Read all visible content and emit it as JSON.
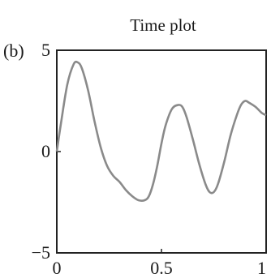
{
  "chart_data": {
    "type": "line",
    "panel_label": "(b)",
    "title": "Time plot",
    "xlabel": "",
    "ylabel": "",
    "xlim": [
      0,
      1
    ],
    "ylim": [
      -5,
      5
    ],
    "x_ticks": [
      0,
      0.5,
      1
    ],
    "x_tick_labels": [
      "0",
      "0.5",
      "1"
    ],
    "y_ticks": [
      -5,
      0,
      5
    ],
    "y_tick_labels": [
      "−5",
      "0",
      "5"
    ],
    "grid": false,
    "legend": "none",
    "line_color": "#8a8a8a",
    "series": [
      {
        "x": [
          0,
          0.02,
          0.05,
          0.08,
          0.1,
          0.12,
          0.15,
          0.18,
          0.21,
          0.24,
          0.27,
          0.3,
          0.33,
          0.36,
          0.39,
          0.42,
          0.44,
          0.46,
          0.48,
          0.5,
          0.52,
          0.55,
          0.58,
          0.6,
          0.62,
          0.65,
          0.68,
          0.71,
          0.73,
          0.75,
          0.77,
          0.8,
          0.83,
          0.86,
          0.88,
          0.9,
          0.92,
          0.95,
          0.98,
          1.0
        ],
        "y": [
          0,
          1.4,
          3.3,
          4.3,
          4.4,
          4.1,
          3.0,
          1.5,
          0.2,
          -0.7,
          -1.2,
          -1.5,
          -1.9,
          -2.2,
          -2.4,
          -2.4,
          -2.2,
          -1.6,
          -0.7,
          0.4,
          1.3,
          2.1,
          2.3,
          2.2,
          1.7,
          0.6,
          -0.6,
          -1.6,
          -2.0,
          -2.0,
          -1.6,
          -0.5,
          0.8,
          1.8,
          2.3,
          2.5,
          2.4,
          2.2,
          1.9,
          1.8
        ]
      }
    ]
  }
}
